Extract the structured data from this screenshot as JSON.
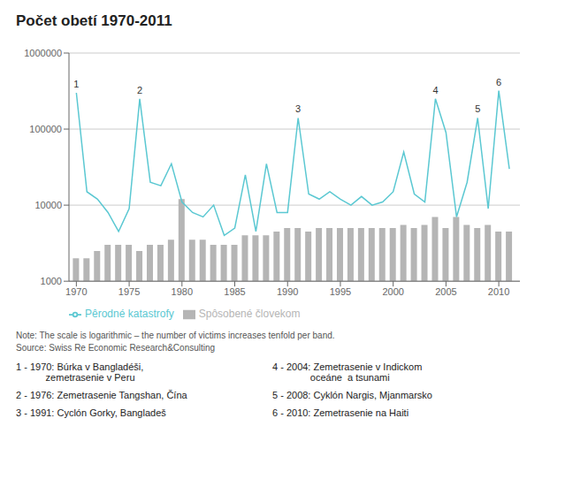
{
  "chart_data": {
    "type": "bar",
    "title": "Počet obetí 1970-2011",
    "x": [
      1970,
      1971,
      1972,
      1973,
      1974,
      1975,
      1976,
      1977,
      1978,
      1979,
      1980,
      1981,
      1982,
      1983,
      1984,
      1985,
      1986,
      1987,
      1988,
      1989,
      1990,
      1991,
      1992,
      1993,
      1994,
      1995,
      1996,
      1997,
      1998,
      1999,
      2000,
      2001,
      2002,
      2003,
      2004,
      2005,
      2006,
      2007,
      2008,
      2009,
      2010,
      2011
    ],
    "series": [
      {
        "name": "Spôsobené človekom",
        "type": "bar",
        "color": "#b5b5b5",
        "values": [
          2000,
          2000,
          2500,
          3000,
          3000,
          3000,
          2500,
          3000,
          3000,
          3500,
          12000,
          3500,
          3500,
          3000,
          3000,
          3000,
          4000,
          4000,
          4000,
          4500,
          5000,
          5000,
          4500,
          5000,
          5000,
          5000,
          5000,
          5000,
          5000,
          5000,
          5000,
          5500,
          5000,
          5500,
          7000,
          5000,
          7000,
          5500,
          5000,
          5500,
          4500,
          4500
        ]
      },
      {
        "name": "Pêrodné katastrofy",
        "type": "line",
        "color": "#5bc8d2",
        "values": [
          300000,
          15000,
          12000,
          8000,
          4500,
          9000,
          250000,
          20000,
          18000,
          35000,
          11000,
          8000,
          7000,
          10000,
          4000,
          5000,
          25000,
          4500,
          35000,
          8000,
          8000,
          140000,
          14000,
          12000,
          15000,
          12000,
          10000,
          13000,
          10000,
          11000,
          15000,
          50000,
          14000,
          11000,
          250000,
          90000,
          7000,
          20000,
          140000,
          9000,
          320000,
          30000
        ]
      }
    ],
    "xlim": [
      1969.3,
      2012.0
    ],
    "xticks": [
      1970,
      1975,
      1980,
      1985,
      1990,
      1995,
      2000,
      2005,
      2010
    ],
    "ylim": [
      1000,
      1000000
    ],
    "yticks": [
      1000,
      10000,
      100000,
      1000000
    ],
    "log": "y",
    "grid": true,
    "legend": "bottom",
    "annotations": [
      {
        "label": "1",
        "x": 1970,
        "value": 300000
      },
      {
        "label": "2",
        "x": 1976,
        "value": 250000
      },
      {
        "label": "3",
        "x": 1991,
        "value": 140000
      },
      {
        "label": "4",
        "x": 2004,
        "value": 250000
      },
      {
        "label": "5",
        "x": 2008,
        "value": 140000
      },
      {
        "label": "6",
        "x": 2010,
        "value": 320000
      }
    ],
    "notes": [
      "Note: The scale is logarithmic – the number of victims increases tenfold per band.",
      "Source: Swiss Re Economic Research&Consulting"
    ],
    "footnotes": [
      [
        "1 - 1970: Búrka v Bangladéši,",
        "           zemetrasenie v Peru"
      ],
      [
        "2 - 1976: Zemetrasenie Tangshan, Čína"
      ],
      [
        "3 - 1991: Cyclón Gorky, Bangladeš"
      ],
      [
        "4 - 2004: Zemetrasenie v Indickom",
        "              oceáne  a tsunami"
      ],
      [
        "5 - 2008: Cyklón Nargis, Mjanmarsko"
      ],
      [
        "6 - 2010: Zemetrasenie na Haiti"
      ]
    ]
  }
}
